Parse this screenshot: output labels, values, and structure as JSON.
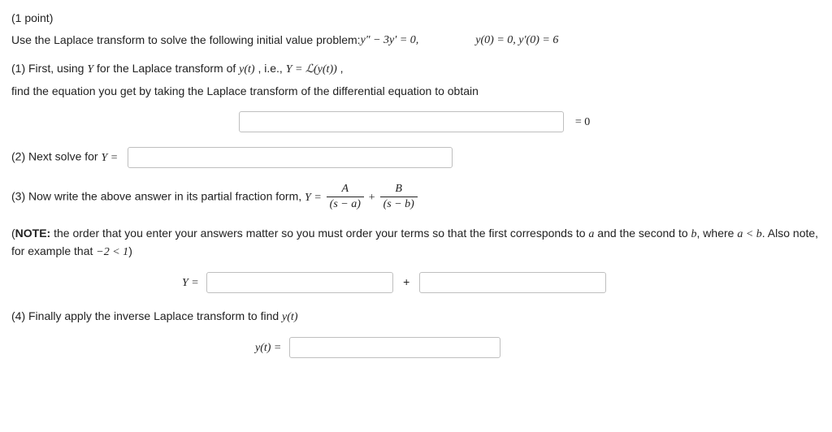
{
  "points": "(1 point)",
  "prompt_lead": "Use the Laplace transform to solve the following initial value problem: ",
  "ode": "y″ − 3y′ = 0,",
  "ics": "y(0) = 0,  y′(0) = 6",
  "part1_a": "(1) First, using ",
  "part1_Y": "Y",
  "part1_b": " for the Laplace transform of ",
  "part1_yt": "y(t)",
  "part1_c": ", i.e., ",
  "part1_eq": "Y = ℒ(y(t))",
  "part1_d": ",",
  "part1_line2": "find the equation you get by taking the Laplace transform of the differential equation to obtain",
  "eq_zero": "= 0",
  "part2_a": "(2) Next solve for ",
  "part2_Y": "Y =",
  "part3_a": "(3) Now write the above answer in its partial fraction form, ",
  "part3_Y": "Y = ",
  "frac1_num": "A",
  "frac1_den": "(s − a)",
  "plus": " + ",
  "frac2_num": "B",
  "frac2_den": "(s − b)",
  "note_a": "(",
  "note_bold": "NOTE:",
  "note_b": " the order that you enter your answers matter so you must order your terms so that the first corresponds to ",
  "note_avar": "a",
  "note_c": " and the second to ",
  "note_bvar": "b",
  "note_d": ", where ",
  "note_ineq1": "a < b",
  "note_e": ". Also note, for example that ",
  "note_ineq2": "−2 < 1",
  "note_f": ")",
  "Y_eq_label": "Y = ",
  "plus_sign": "+",
  "part4_a": "(4) Finally apply the inverse Laplace transform to find ",
  "part4_yt": "y(t)",
  "yt_label": "y(t) = ",
  "input_widths": {
    "eq": 400,
    "solveY": 400,
    "pf1": 230,
    "pf2": 230,
    "yt": 260
  },
  "layout": {
    "eq_indent": 280,
    "Yrow_indent": 210,
    "yt_indent": 300
  }
}
